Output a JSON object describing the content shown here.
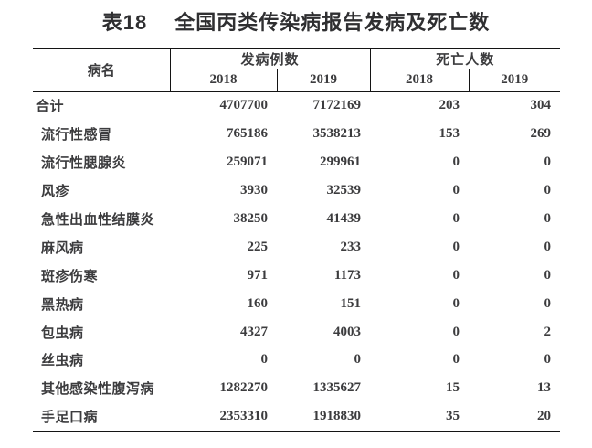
{
  "page": {
    "title_label": "表18",
    "title_text": "全国丙类传染病报告发病及死亡数"
  },
  "table": {
    "disease_header": "病名",
    "case_group_header": "发病例数",
    "death_group_header": "死亡人数",
    "year_headers": [
      "2018",
      "2019",
      "2018",
      "2019"
    ],
    "rows": [
      {
        "name": "合计",
        "cases_2018": "4707700",
        "cases_2019": "7172169",
        "deaths_2018": "203",
        "deaths_2019": "304"
      },
      {
        "name": "流行性感冒",
        "cases_2018": "765186",
        "cases_2019": "3538213",
        "deaths_2018": "153",
        "deaths_2019": "269"
      },
      {
        "name": "流行性腮腺炎",
        "cases_2018": "259071",
        "cases_2019": "299961",
        "deaths_2018": "0",
        "deaths_2019": "0"
      },
      {
        "name": "风疹",
        "cases_2018": "3930",
        "cases_2019": "32539",
        "deaths_2018": "0",
        "deaths_2019": "0"
      },
      {
        "name": "急性出血性结膜炎",
        "cases_2018": "38250",
        "cases_2019": "41439",
        "deaths_2018": "0",
        "deaths_2019": "0"
      },
      {
        "name": "麻风病",
        "cases_2018": "225",
        "cases_2019": "233",
        "deaths_2018": "0",
        "deaths_2019": "0"
      },
      {
        "name": "斑疹伤寒",
        "cases_2018": "971",
        "cases_2019": "1173",
        "deaths_2018": "0",
        "deaths_2019": "0"
      },
      {
        "name": "黑热病",
        "cases_2018": "160",
        "cases_2019": "151",
        "deaths_2018": "0",
        "deaths_2019": "0"
      },
      {
        "name": "包虫病",
        "cases_2018": "4327",
        "cases_2019": "4003",
        "deaths_2018": "0",
        "deaths_2019": "2"
      },
      {
        "name": "丝虫病",
        "cases_2018": "0",
        "cases_2019": "0",
        "deaths_2018": "0",
        "deaths_2019": "0"
      },
      {
        "name": "其他感染性腹泻病",
        "cases_2018": "1282270",
        "cases_2019": "1335627",
        "deaths_2018": "15",
        "deaths_2019": "13"
      },
      {
        "name": "手足口病",
        "cases_2018": "2353310",
        "cases_2019": "1918830",
        "deaths_2018": "35",
        "deaths_2019": "20"
      }
    ]
  },
  "colors": {
    "background": "#ffffff",
    "title_text": "#2f2f31",
    "table_text": "#3c3c3e",
    "border": "#141414"
  }
}
